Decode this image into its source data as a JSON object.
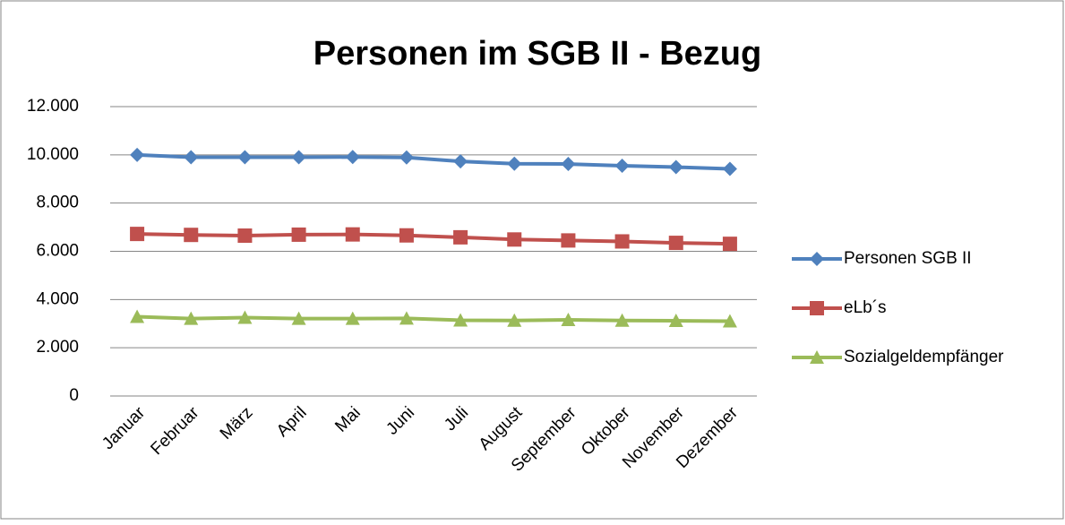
{
  "chart_data": {
    "type": "line",
    "title": "Personen im SGB II - Bezug",
    "categories": [
      "Januar",
      "Februar",
      "März",
      "April",
      "Mai",
      "Juni",
      "Juli",
      "August",
      "September",
      "Oktober",
      "November",
      "Dezember"
    ],
    "series": [
      {
        "name": "Personen SGB II",
        "color": "#4f81bd",
        "marker": "diamond",
        "values": [
          10000,
          9900,
          9900,
          9900,
          9910,
          9890,
          9730,
          9630,
          9620,
          9550,
          9490,
          9420
        ]
      },
      {
        "name": "eLb´s",
        "color": "#c0504d",
        "marker": "square",
        "values": [
          6720,
          6680,
          6650,
          6690,
          6700,
          6660,
          6580,
          6490,
          6450,
          6410,
          6350,
          6310
        ]
      },
      {
        "name": "Sozialgeldempfänger",
        "color": "#9bbb59",
        "marker": "triangle",
        "values": [
          3290,
          3210,
          3250,
          3210,
          3210,
          3220,
          3140,
          3130,
          3160,
          3130,
          3120,
          3100
        ]
      }
    ],
    "ylim": [
      0,
      12000
    ],
    "yticks": [
      0,
      {
        "value": 2000,
        "label": "2.000"
      },
      {
        "value": 4000,
        "label": "4.000"
      },
      {
        "value": 6000,
        "label": "6.000"
      },
      {
        "value": 8000,
        "label": "8.000"
      },
      {
        "value": 10000,
        "label": "10.000"
      },
      {
        "value": 12000,
        "label": "12.000"
      }
    ],
    "grid": true,
    "legend": "right"
  }
}
